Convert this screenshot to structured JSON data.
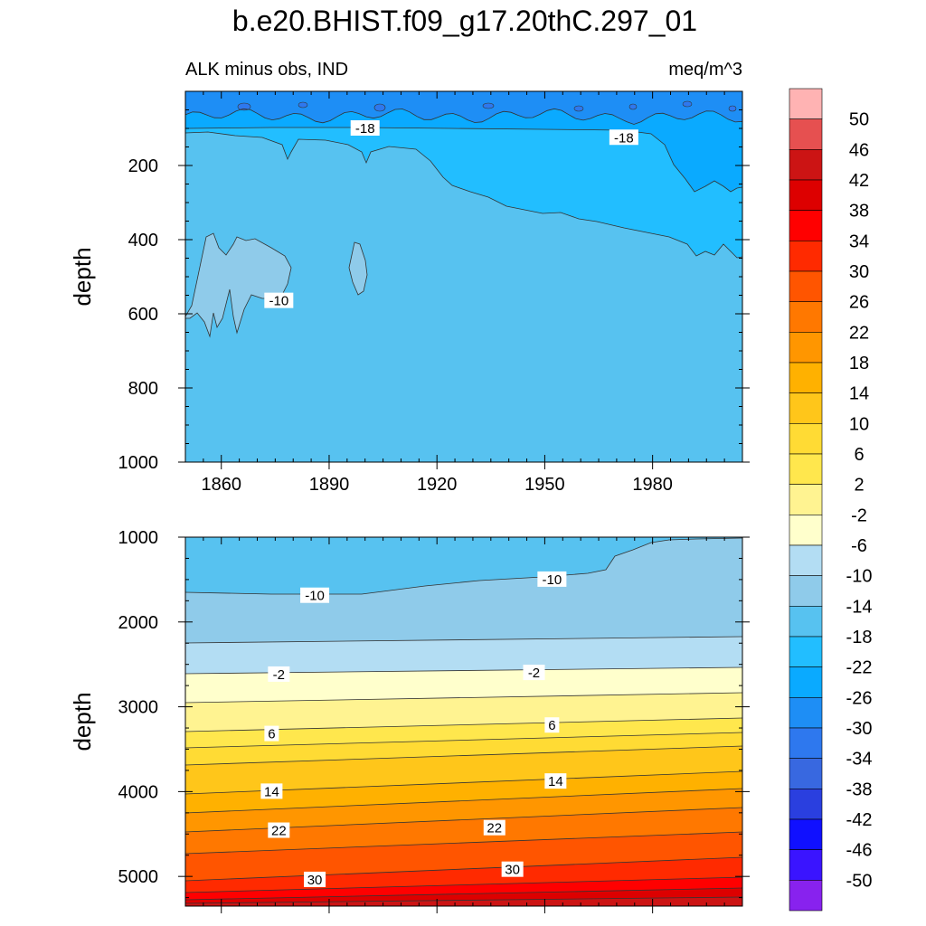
{
  "title": "b.e20.BHIST.f09_g17.20thC.297_01",
  "chart_data": [
    {
      "type": "contour",
      "panel": "upper",
      "left_label": "ALK minus obs, IND",
      "right_label": "meq/m^3",
      "ylabel": "depth",
      "xlabel": "",
      "xlim": [
        1850,
        2005
      ],
      "ylim": [
        1000,
        0
      ],
      "xticks": [
        1860,
        1890,
        1920,
        1950,
        1980
      ],
      "xtick_labels": [
        "1860",
        "1890",
        "1920",
        "1950",
        "1980"
      ],
      "yticks": [
        200,
        400,
        600,
        800,
        1000
      ],
      "ytick_labels": [
        "200",
        "400",
        "600",
        "800",
        "1000"
      ],
      "levels": [
        {
          "id": "uA",
          "name": "-14 to -10 (background)"
        },
        {
          "id": "uB",
          "name": "-18 to -14"
        },
        {
          "id": "uC",
          "name": "-22 to -18"
        },
        {
          "id": "uD",
          "name": "-26 to -22"
        },
        {
          "id": "uE",
          "name": "-30 to -26"
        },
        {
          "id": "uF",
          "name": "-10 to -6"
        }
      ],
      "contour_labels": [
        {
          "text": "-18",
          "x": 1900,
          "depth": 100
        },
        {
          "text": "-18",
          "x": 1972,
          "depth": 125
        },
        {
          "text": "-10",
          "x": 1876,
          "depth": 565
        }
      ]
    },
    {
      "type": "contour",
      "panel": "lower",
      "ylabel": "depth",
      "xlim": [
        1850,
        2005
      ],
      "ylim": [
        5350,
        1000
      ],
      "yticks": [
        1000,
        2000,
        3000,
        4000,
        5000
      ],
      "ytick_labels": [
        "1000",
        "2000",
        "3000",
        "4000",
        "5000"
      ],
      "contour_labels": [
        {
          "text": "-10",
          "x": 1886,
          "depth": 1690
        },
        {
          "text": "-10",
          "x": 1952,
          "depth": 1500
        },
        {
          "text": "-2",
          "x": 1876,
          "depth": 2620
        },
        {
          "text": "-2",
          "x": 1947,
          "depth": 2600
        },
        {
          "text": "6",
          "x": 1874,
          "depth": 3320
        },
        {
          "text": "6",
          "x": 1952,
          "depth": 3220
        },
        {
          "text": "14",
          "x": 1874,
          "depth": 4000
        },
        {
          "text": "14",
          "x": 1953,
          "depth": 3880
        },
        {
          "text": "22",
          "x": 1876,
          "depth": 4460
        },
        {
          "text": "22",
          "x": 1936,
          "depth": 4430
        },
        {
          "text": "30",
          "x": 1886,
          "depth": 5040
        },
        {
          "text": "30",
          "x": 1941,
          "depth": 4920
        }
      ]
    }
  ],
  "colorbar": {
    "labels": [
      "50",
      "46",
      "42",
      "38",
      "34",
      "30",
      "26",
      "22",
      "18",
      "14",
      "10",
      "6",
      "2",
      "-2",
      "-6",
      "-10",
      "-14",
      "-18",
      "-22",
      "-26",
      "-30",
      "-34",
      "-38",
      "-42",
      "-46",
      "-50"
    ],
    "colors": [
      "#FFB3B3",
      "#E65050",
      "#CC1414",
      "#DD0000",
      "#FF0000",
      "#FF2A00",
      "#FF5500",
      "#FF7800",
      "#FF9600",
      "#FFB100",
      "#FFC61A",
      "#FFDB34",
      "#FFE74D",
      "#FFF391",
      "#FFFFCC",
      "#B3DDF3",
      "#8FCBEA",
      "#57C2F0",
      "#22BEFF",
      "#0AAAFF",
      "#1E8EF5",
      "#2E78EE",
      "#3868E0",
      "#2A3FDF",
      "#1010FF",
      "#3A14FF",
      "#8822EE"
    ]
  },
  "colors": {
    "u_bg": "#57C2F0",
    "u_m18": "#22BEFF",
    "u_m22": "#0AAAFF",
    "u_m26": "#1E8EF5",
    "u_m30": "#2E78EE",
    "u_m10": "#8FCBEA",
    "l_bands": [
      "#57C2F0",
      "#8FCBEA",
      "#B3DDF3",
      "#FFFFCC",
      "#FFF391",
      "#FFE74D",
      "#FFDB34",
      "#FFC61A",
      "#FFB100",
      "#FF9600",
      "#FF7800",
      "#FF5500",
      "#FF2A00",
      "#FF0000",
      "#DD0000",
      "#CC1414"
    ]
  }
}
